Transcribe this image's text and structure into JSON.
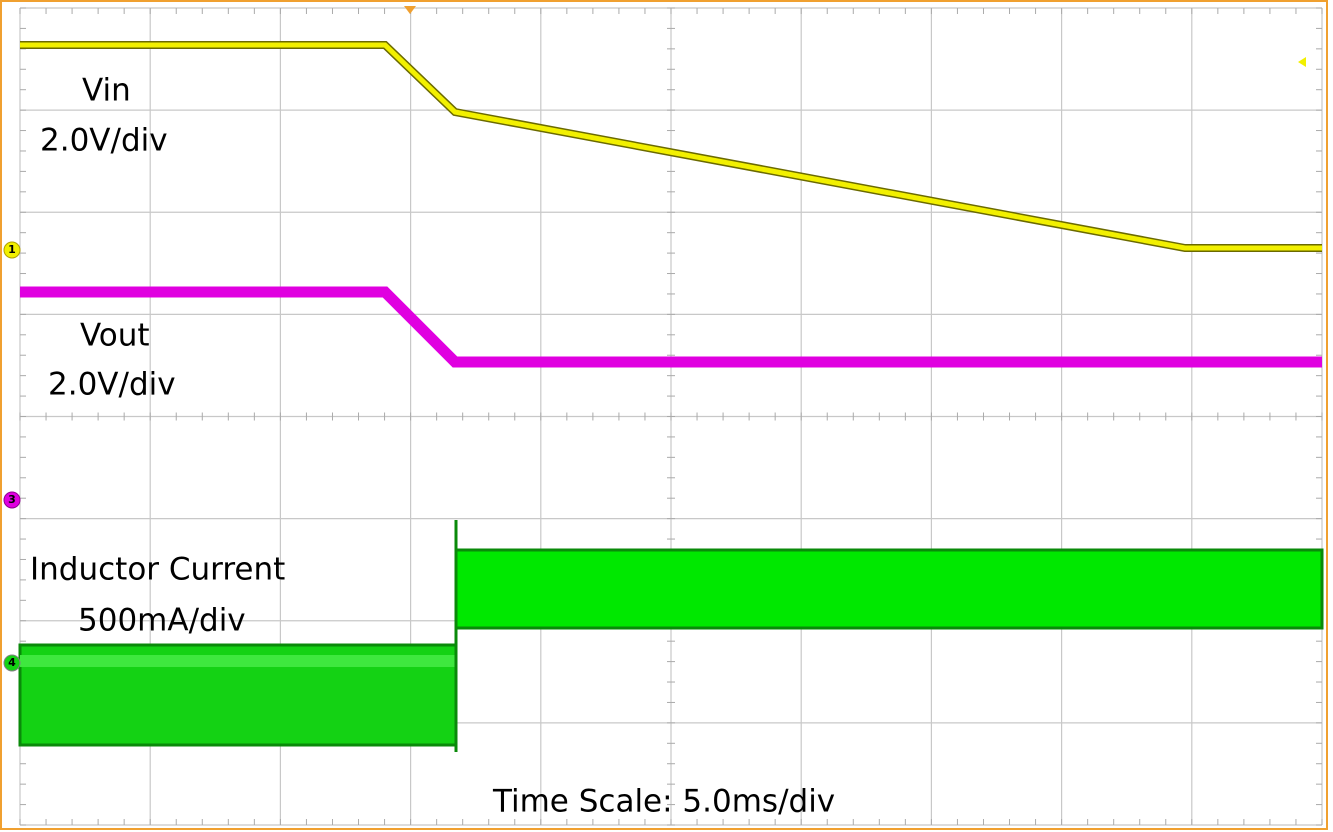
{
  "labels": {
    "vin": "Vin",
    "vin_scale": "2.0V/div",
    "vout": "Vout",
    "vout_scale": "2.0V/div",
    "current": "Inductor Current",
    "current_scale": "500mA/div",
    "time_scale": "Time Scale: 5.0ms/div"
  },
  "channels": {
    "ch1": "1",
    "ch3": "3",
    "ch4": "4"
  }
}
